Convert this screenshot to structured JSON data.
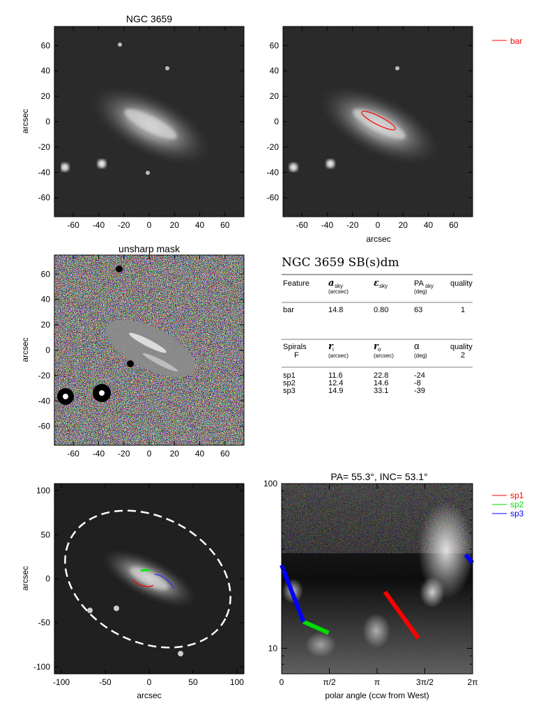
{
  "panels": {
    "p1": {
      "title": "NGC 3659",
      "ylabel": "arcsec",
      "xlabel": "",
      "xticks": [
        "-60",
        "-40",
        "-20",
        "0",
        "20",
        "40",
        "60"
      ],
      "yticks": [
        "60",
        "40",
        "20",
        "0",
        "-20",
        "-40",
        "-60"
      ]
    },
    "p2": {
      "title": "",
      "ylabel": "",
      "xlabel": "arcsec",
      "xticks": [
        "-60",
        "-40",
        "-20",
        "0",
        "20",
        "40",
        "60"
      ],
      "yticks": [
        "60",
        "40",
        "20",
        "0",
        "-20",
        "-40",
        "-60"
      ],
      "legend": [
        {
          "label": "bar",
          "color": "#ff0000"
        }
      ]
    },
    "p3": {
      "title": "unsharp mask",
      "ylabel": "arcsec",
      "xlabel": "",
      "xticks": [
        "-60",
        "-40",
        "-20",
        "0",
        "20",
        "40",
        "60"
      ],
      "yticks": [
        "60",
        "40",
        "20",
        "0",
        "-20",
        "-40",
        "-60"
      ]
    },
    "p5": {
      "title": "",
      "ylabel": "arcsec",
      "xlabel": "arcsec",
      "xticks": [
        "-100",
        "-50",
        "0",
        "50",
        "100"
      ],
      "yticks": [
        "100",
        "50",
        "0",
        "-50",
        "-100"
      ]
    },
    "p6": {
      "title": "PA=  55.3°, INC=  53.1°",
      "xlabel": "polar angle (ccw from West)",
      "xticks": [
        "0",
        "π/2",
        "π",
        "3π/2",
        "2π"
      ],
      "yticks": [
        "100",
        "10"
      ],
      "legend": [
        {
          "label": "sp1",
          "color": "#ff0000"
        },
        {
          "label": "sp2",
          "color": "#00dd00"
        },
        {
          "label": "sp3",
          "color": "#0000ff"
        }
      ]
    }
  },
  "table": {
    "title": "NGC 3659  SB(s)dm",
    "bar_header": {
      "feature": "Feature",
      "a": "a",
      "a_sub": "sky",
      "a_unit": "(arcsec)",
      "e": "ε",
      "e_sub": "sky",
      "pa": "PA",
      "pa_sub": "sky",
      "pa_unit": "(deg)",
      "quality": "quality"
    },
    "bar_row": {
      "name": "bar",
      "a": "14.8",
      "e": "0.80",
      "pa": "63",
      "quality": "1"
    },
    "spiral_header": {
      "feature": "Spirals",
      "feature2": "F",
      "ri": "r",
      "ri_sub": "i",
      "ri_unit": "(arcsec)",
      "ro": "r",
      "ro_sub": "o",
      "ro_unit": "(arcsec)",
      "alpha": "α",
      "alpha_unit": "(deg)",
      "quality": "quality",
      "quality2": "2"
    },
    "spiral_rows": [
      {
        "name": "sp1",
        "ri": "11.6",
        "ro": "22.8",
        "alpha": "-24"
      },
      {
        "name": "sp2",
        "ri": "12.4",
        "ro": "14.6",
        "alpha": "-8"
      },
      {
        "name": "sp3",
        "ri": "14.9",
        "ro": "33.1",
        "alpha": "-39"
      }
    ]
  },
  "chart_data": [
    {
      "type": "image",
      "title": "NGC 3659",
      "xlim": [
        -75,
        75
      ],
      "ylim": [
        -75,
        75
      ]
    },
    {
      "type": "image",
      "overlay": {
        "name": "bar",
        "semi_major": 14.8,
        "ellipticity": 0.8,
        "pa_deg": 63
      },
      "xlim": [
        -75,
        75
      ],
      "ylim": [
        -75,
        75
      ]
    },
    {
      "type": "image",
      "title": "unsharp mask",
      "xlim": [
        -75,
        75
      ],
      "ylim": [
        -75,
        75
      ]
    },
    {
      "type": "image",
      "xlim": [
        -108,
        108
      ],
      "ylim": [
        -108,
        108
      ]
    },
    {
      "type": "line",
      "title": "PA=  55.3°, INC=  53.1°",
      "xlabel": "polar angle (ccw from West)",
      "ylim": [
        7,
        100
      ],
      "yscale": "log",
      "series": [
        {
          "name": "sp1",
          "color": "#ff0000",
          "x": [
            3.4,
            4.5
          ],
          "y": [
            22,
            11.5
          ]
        },
        {
          "name": "sp2",
          "color": "#00dd00",
          "x": [
            0.72,
            1.55
          ],
          "y": [
            14.5,
            12.4
          ]
        },
        {
          "name": "sp3",
          "color": "#0000ff",
          "x": [
            0.0,
            0.72
          ],
          "y": [
            32,
            14.5
          ]
        },
        {
          "name": "sp3",
          "color": "#0000ff",
          "x": [
            6.05,
            6.28
          ],
          "y": [
            37,
            33
          ]
        }
      ]
    }
  ]
}
